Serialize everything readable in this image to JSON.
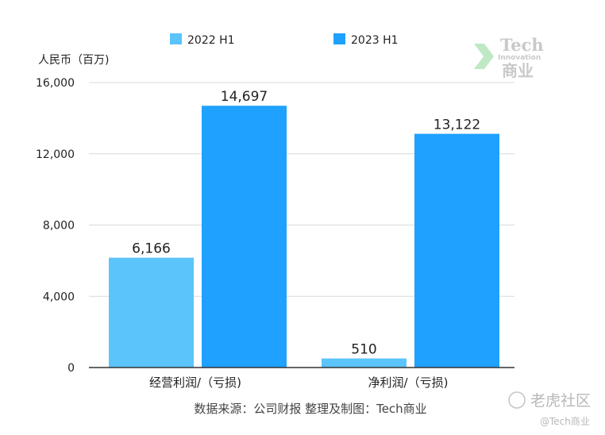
{
  "chart_data": {
    "type": "bar",
    "categories": [
      "经营利润/（亏损)",
      "净利润/（亏损)"
    ],
    "series": [
      {
        "name": "2022 H1",
        "values": [
          6166,
          510
        ],
        "labels": [
          "6,166",
          "510"
        ],
        "color": "#5bc4fb"
      },
      {
        "name": "2023 H1",
        "values": [
          14697,
          13122
        ],
        "labels": [
          "14,697",
          "13,122"
        ],
        "color": "#1ea1ff"
      }
    ],
    "ylabel": "人民币（百万)",
    "ylim": [
      0,
      16000
    ],
    "yticks": [
      0,
      4000,
      8000,
      12000,
      16000
    ],
    "ytick_labels": [
      "0",
      "4,000",
      "8,000",
      "12,000",
      "16,000"
    ],
    "grid": true,
    "legend": "top"
  },
  "source": "数据来源：公司财报 整理及制图：Tech商业",
  "watermark": {
    "tech": "Tech",
    "innovation": "Innovation",
    "shangye": "商业",
    "community": "老虎社区",
    "handle": "@Tech商业"
  },
  "colors": {
    "grid": "#d9d9d9",
    "axis": "#333333",
    "watermark": "#c9c9c9"
  }
}
